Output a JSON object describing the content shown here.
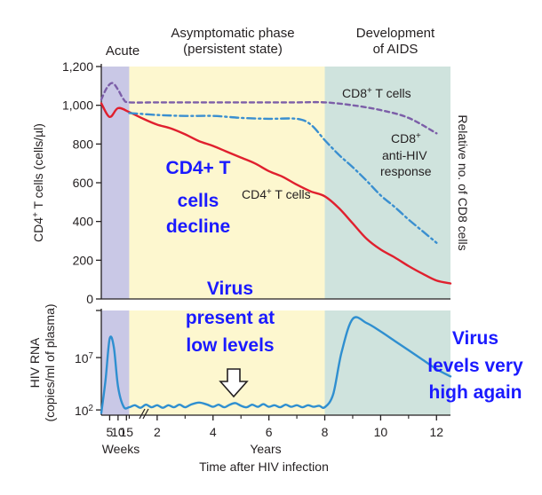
{
  "chart_data": [
    {
      "type": "line",
      "phases": [
        {
          "label_lines": [
            "Acute"
          ],
          "x_range": [
            0,
            1
          ],
          "color": "#c9c8e6"
        },
        {
          "label_lines": [
            "Asymptomatic phase",
            "(persistent state)"
          ],
          "x_range": [
            1,
            8
          ],
          "color": "#fdf7cf"
        },
        {
          "label_lines": [
            "Development",
            "of AIDS"
          ],
          "x_range": [
            8,
            12.5
          ],
          "color": "#cfe3dd"
        }
      ],
      "ylabel_parts": [
        "CD4",
        "+",
        " T cells (cells/µl)"
      ],
      "ylabel_right": "Relative no. of CD8 cells",
      "ylim": [
        0,
        1200
      ],
      "yticks": [
        "0",
        "200",
        "400",
        "600",
        "800",
        "1,000",
        "1,200"
      ],
      "series": [
        {
          "label_parts": [
            "CD4",
            "+",
            " T cells"
          ],
          "color": "#e0202e",
          "style": "solid",
          "points": [
            [
              0,
              1010
            ],
            [
              0.3,
              940
            ],
            [
              0.6,
              985
            ],
            [
              1,
              965
            ],
            [
              1.5,
              930
            ],
            [
              2,
              900
            ],
            [
              2.5,
              880
            ],
            [
              3,
              850
            ],
            [
              3.5,
              815
            ],
            [
              4,
              790
            ],
            [
              4.5,
              760
            ],
            [
              5,
              730
            ],
            [
              5.5,
              700
            ],
            [
              6,
              660
            ],
            [
              6.5,
              630
            ],
            [
              7,
              590
            ],
            [
              7.5,
              555
            ],
            [
              8,
              530
            ],
            [
              8.5,
              470
            ],
            [
              9,
              390
            ],
            [
              9.5,
              310
            ],
            [
              10,
              255
            ],
            [
              10.5,
              215
            ],
            [
              11,
              170
            ],
            [
              11.5,
              130
            ],
            [
              12,
              95
            ],
            [
              12.5,
              80
            ]
          ]
        },
        {
          "label_parts": [
            "CD8",
            "+",
            " T cells"
          ],
          "color": "#7c5ea8",
          "style": "dashed",
          "points": [
            [
              0,
              1030
            ],
            [
              0.2,
              1090
            ],
            [
              0.4,
              1115
            ],
            [
              0.6,
              1080
            ],
            [
              0.8,
              1030
            ],
            [
              1,
              1015
            ],
            [
              2,
              1015
            ],
            [
              3,
              1015
            ],
            [
              4,
              1015
            ],
            [
              5,
              1015
            ],
            [
              6,
              1015
            ],
            [
              7,
              1015
            ],
            [
              8,
              1015
            ],
            [
              9,
              1000
            ],
            [
              10,
              975
            ],
            [
              11,
              935
            ],
            [
              12,
              855
            ]
          ]
        },
        {
          "label_lines": [
            "CD8",
            "anti-HIV",
            "response"
          ],
          "superscript": "+",
          "color": "#3a8fd0",
          "style": "dashdot",
          "points": [
            [
              1,
              960
            ],
            [
              2,
              950
            ],
            [
              3,
              945
            ],
            [
              4,
              945
            ],
            [
              5,
              935
            ],
            [
              6,
              930
            ],
            [
              7,
              930
            ],
            [
              7.5,
              900
            ],
            [
              8,
              820
            ],
            [
              8.5,
              745
            ],
            [
              9,
              680
            ],
            [
              9.5,
              610
            ],
            [
              10,
              535
            ],
            [
              10.5,
              475
            ],
            [
              11,
              410
            ],
            [
              11.5,
              350
            ],
            [
              12,
              290
            ]
          ]
        }
      ]
    },
    {
      "type": "line",
      "ylabel_lines": [
        "HIV RNA",
        "(copies/ml of plasma)"
      ],
      "yticks": [
        {
          "base": "10",
          "exp": "2",
          "value": 2
        },
        {
          "base": "10",
          "exp": "7",
          "value": 7
        }
      ],
      "xticks": [
        "5",
        "10",
        "15",
        "2",
        "4",
        "6",
        "8",
        "10",
        "12"
      ],
      "xlabel_weeks": "Weeks",
      "xlabel_years": "Years",
      "xlabel": "Time after HIV infection",
      "series": [
        {
          "color": "#2f8fd0",
          "points": [
            [
              0,
              1.7
            ],
            [
              0.15,
              4.8
            ],
            [
              0.3,
              8.8
            ],
            [
              0.45,
              8.0
            ],
            [
              0.6,
              4.2
            ],
            [
              0.8,
              2.3
            ],
            [
              1,
              2.25
            ],
            [
              1.2,
              2.45
            ],
            [
              1.4,
              2.2
            ],
            [
              1.6,
              2.5
            ],
            [
              1.8,
              2.25
            ],
            [
              2,
              2.45
            ],
            [
              2.2,
              2.2
            ],
            [
              2.4,
              2.45
            ],
            [
              2.6,
              2.25
            ],
            [
              2.8,
              2.5
            ],
            [
              3,
              2.25
            ],
            [
              3.2,
              2.5
            ],
            [
              3.5,
              2.7
            ],
            [
              3.8,
              2.5
            ],
            [
              4,
              2.3
            ],
            [
              4.2,
              2.5
            ],
            [
              4.4,
              2.25
            ],
            [
              4.6,
              2.5
            ],
            [
              4.8,
              2.65
            ],
            [
              5,
              2.4
            ],
            [
              5.2,
              2.25
            ],
            [
              5.4,
              2.5
            ],
            [
              5.6,
              2.3
            ],
            [
              5.8,
              2.55
            ],
            [
              6,
              2.3
            ],
            [
              6.2,
              2.45
            ],
            [
              6.4,
              2.25
            ],
            [
              6.6,
              2.5
            ],
            [
              6.8,
              2.3
            ],
            [
              7,
              2.45
            ],
            [
              7.2,
              2.25
            ],
            [
              7.4,
              2.45
            ],
            [
              7.6,
              2.3
            ],
            [
              7.8,
              2.4
            ],
            [
              8,
              2.25
            ],
            [
              8.3,
              3.5
            ],
            [
              8.6,
              7.5
            ],
            [
              9,
              10.7
            ],
            [
              9.5,
              10.3
            ],
            [
              10,
              9.5
            ],
            [
              10.5,
              8.6
            ],
            [
              11,
              7.7
            ],
            [
              11.5,
              6.8
            ],
            [
              12,
              5.9
            ],
            [
              12.5,
              5.2
            ]
          ]
        }
      ]
    }
  ],
  "annotations": {
    "cd4_decline": [
      "CD4+ T",
      "cells",
      "decline"
    ],
    "virus_low": [
      "Virus",
      "present at",
      "low levels"
    ],
    "virus_high": [
      "Virus",
      "levels very",
      "high again"
    ]
  }
}
